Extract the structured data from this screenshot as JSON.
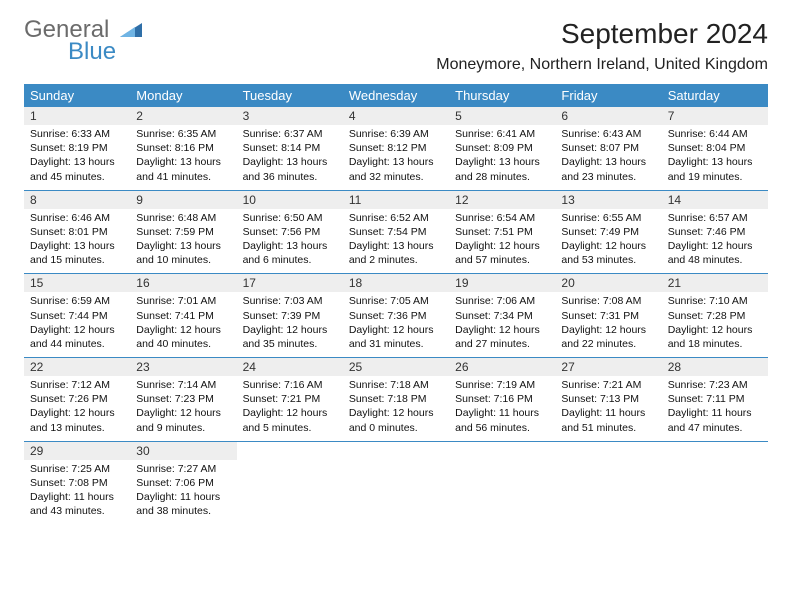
{
  "logo": {
    "word1": "General",
    "word2": "Blue"
  },
  "header": {
    "month": "September 2024",
    "location": "Moneymore, Northern Ireland, United Kingdom"
  },
  "colors": {
    "accent": "#3b8ac4",
    "dayrow_bg": "#eeeeee",
    "text": "#222222",
    "logo_gray": "#6b6b6b"
  },
  "dow": [
    "Sunday",
    "Monday",
    "Tuesday",
    "Wednesday",
    "Thursday",
    "Friday",
    "Saturday"
  ],
  "weeks": [
    [
      {
        "n": "1",
        "sr": "Sunrise: 6:33 AM",
        "ss": "Sunset: 8:19 PM",
        "d1": "Daylight: 13 hours",
        "d2": "and 45 minutes."
      },
      {
        "n": "2",
        "sr": "Sunrise: 6:35 AM",
        "ss": "Sunset: 8:16 PM",
        "d1": "Daylight: 13 hours",
        "d2": "and 41 minutes."
      },
      {
        "n": "3",
        "sr": "Sunrise: 6:37 AM",
        "ss": "Sunset: 8:14 PM",
        "d1": "Daylight: 13 hours",
        "d2": "and 36 minutes."
      },
      {
        "n": "4",
        "sr": "Sunrise: 6:39 AM",
        "ss": "Sunset: 8:12 PM",
        "d1": "Daylight: 13 hours",
        "d2": "and 32 minutes."
      },
      {
        "n": "5",
        "sr": "Sunrise: 6:41 AM",
        "ss": "Sunset: 8:09 PM",
        "d1": "Daylight: 13 hours",
        "d2": "and 28 minutes."
      },
      {
        "n": "6",
        "sr": "Sunrise: 6:43 AM",
        "ss": "Sunset: 8:07 PM",
        "d1": "Daylight: 13 hours",
        "d2": "and 23 minutes."
      },
      {
        "n": "7",
        "sr": "Sunrise: 6:44 AM",
        "ss": "Sunset: 8:04 PM",
        "d1": "Daylight: 13 hours",
        "d2": "and 19 minutes."
      }
    ],
    [
      {
        "n": "8",
        "sr": "Sunrise: 6:46 AM",
        "ss": "Sunset: 8:01 PM",
        "d1": "Daylight: 13 hours",
        "d2": "and 15 minutes."
      },
      {
        "n": "9",
        "sr": "Sunrise: 6:48 AM",
        "ss": "Sunset: 7:59 PM",
        "d1": "Daylight: 13 hours",
        "d2": "and 10 minutes."
      },
      {
        "n": "10",
        "sr": "Sunrise: 6:50 AM",
        "ss": "Sunset: 7:56 PM",
        "d1": "Daylight: 13 hours",
        "d2": "and 6 minutes."
      },
      {
        "n": "11",
        "sr": "Sunrise: 6:52 AM",
        "ss": "Sunset: 7:54 PM",
        "d1": "Daylight: 13 hours",
        "d2": "and 2 minutes."
      },
      {
        "n": "12",
        "sr": "Sunrise: 6:54 AM",
        "ss": "Sunset: 7:51 PM",
        "d1": "Daylight: 12 hours",
        "d2": "and 57 minutes."
      },
      {
        "n": "13",
        "sr": "Sunrise: 6:55 AM",
        "ss": "Sunset: 7:49 PM",
        "d1": "Daylight: 12 hours",
        "d2": "and 53 minutes."
      },
      {
        "n": "14",
        "sr": "Sunrise: 6:57 AM",
        "ss": "Sunset: 7:46 PM",
        "d1": "Daylight: 12 hours",
        "d2": "and 48 minutes."
      }
    ],
    [
      {
        "n": "15",
        "sr": "Sunrise: 6:59 AM",
        "ss": "Sunset: 7:44 PM",
        "d1": "Daylight: 12 hours",
        "d2": "and 44 minutes."
      },
      {
        "n": "16",
        "sr": "Sunrise: 7:01 AM",
        "ss": "Sunset: 7:41 PM",
        "d1": "Daylight: 12 hours",
        "d2": "and 40 minutes."
      },
      {
        "n": "17",
        "sr": "Sunrise: 7:03 AM",
        "ss": "Sunset: 7:39 PM",
        "d1": "Daylight: 12 hours",
        "d2": "and 35 minutes."
      },
      {
        "n": "18",
        "sr": "Sunrise: 7:05 AM",
        "ss": "Sunset: 7:36 PM",
        "d1": "Daylight: 12 hours",
        "d2": "and 31 minutes."
      },
      {
        "n": "19",
        "sr": "Sunrise: 7:06 AM",
        "ss": "Sunset: 7:34 PM",
        "d1": "Daylight: 12 hours",
        "d2": "and 27 minutes."
      },
      {
        "n": "20",
        "sr": "Sunrise: 7:08 AM",
        "ss": "Sunset: 7:31 PM",
        "d1": "Daylight: 12 hours",
        "d2": "and 22 minutes."
      },
      {
        "n": "21",
        "sr": "Sunrise: 7:10 AM",
        "ss": "Sunset: 7:28 PM",
        "d1": "Daylight: 12 hours",
        "d2": "and 18 minutes."
      }
    ],
    [
      {
        "n": "22",
        "sr": "Sunrise: 7:12 AM",
        "ss": "Sunset: 7:26 PM",
        "d1": "Daylight: 12 hours",
        "d2": "and 13 minutes."
      },
      {
        "n": "23",
        "sr": "Sunrise: 7:14 AM",
        "ss": "Sunset: 7:23 PM",
        "d1": "Daylight: 12 hours",
        "d2": "and 9 minutes."
      },
      {
        "n": "24",
        "sr": "Sunrise: 7:16 AM",
        "ss": "Sunset: 7:21 PM",
        "d1": "Daylight: 12 hours",
        "d2": "and 5 minutes."
      },
      {
        "n": "25",
        "sr": "Sunrise: 7:18 AM",
        "ss": "Sunset: 7:18 PM",
        "d1": "Daylight: 12 hours",
        "d2": "and 0 minutes."
      },
      {
        "n": "26",
        "sr": "Sunrise: 7:19 AM",
        "ss": "Sunset: 7:16 PM",
        "d1": "Daylight: 11 hours",
        "d2": "and 56 minutes."
      },
      {
        "n": "27",
        "sr": "Sunrise: 7:21 AM",
        "ss": "Sunset: 7:13 PM",
        "d1": "Daylight: 11 hours",
        "d2": "and 51 minutes."
      },
      {
        "n": "28",
        "sr": "Sunrise: 7:23 AM",
        "ss": "Sunset: 7:11 PM",
        "d1": "Daylight: 11 hours",
        "d2": "and 47 minutes."
      }
    ],
    [
      {
        "n": "29",
        "sr": "Sunrise: 7:25 AM",
        "ss": "Sunset: 7:08 PM",
        "d1": "Daylight: 11 hours",
        "d2": "and 43 minutes."
      },
      {
        "n": "30",
        "sr": "Sunrise: 7:27 AM",
        "ss": "Sunset: 7:06 PM",
        "d1": "Daylight: 11 hours",
        "d2": "and 38 minutes."
      },
      null,
      null,
      null,
      null,
      null
    ]
  ]
}
